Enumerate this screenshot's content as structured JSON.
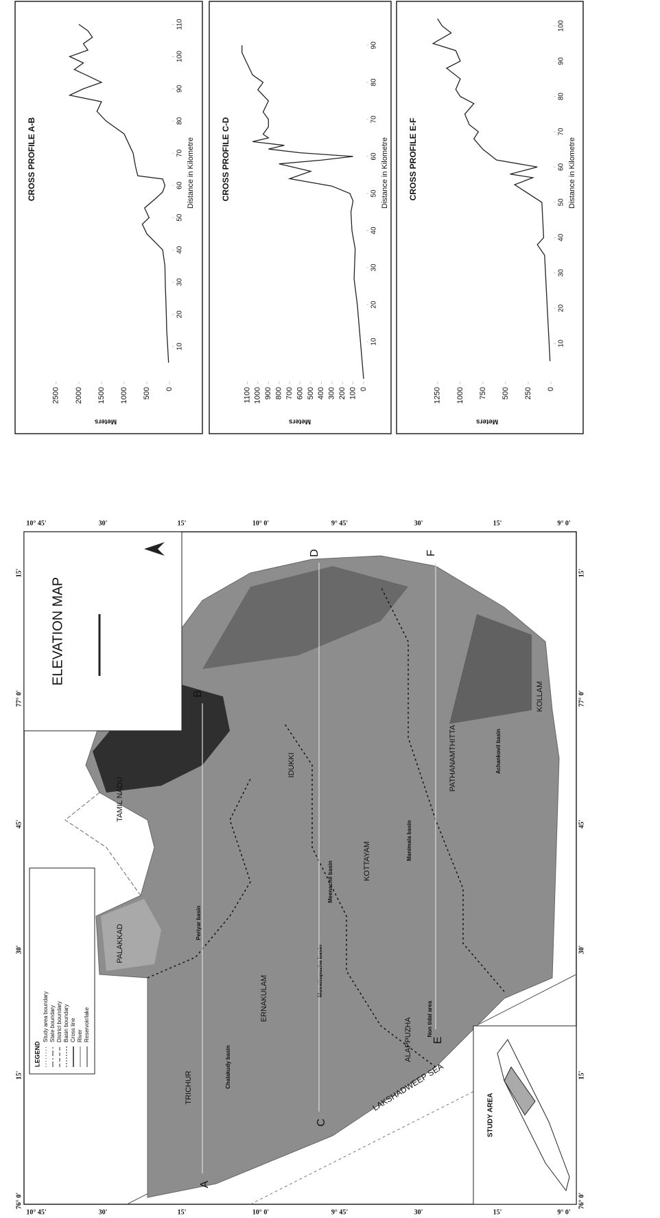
{
  "map": {
    "title": "ELEVATION MAP",
    "legend": {
      "title": "LEGEND",
      "items": [
        "Study area boundary",
        "State boundary",
        "District boundary",
        "Basin boundary",
        "Cross line",
        "River",
        "Reservoir/lake"
      ]
    },
    "inset_title": "STUDY AREA",
    "sea": "LAKSHADWEEP SEA",
    "regions": [
      "PALAKKAD",
      "TAMIL NADU",
      "IDUKKI",
      "TRICHUR",
      "ERNAKULAM",
      "KOTTAYAM",
      "ALAPPUZHA",
      "PATHANAMTHITTA",
      "KOLLAM"
    ],
    "basins": [
      "Chalakudy basin",
      "Periyar basin",
      "Muvattupuzha basin",
      "Meenachil basin",
      "Manimala basin",
      "Achankovil basin",
      "Non tidal area"
    ],
    "section_points": [
      "A",
      "B",
      "C",
      "D",
      "E",
      "F"
    ],
    "longitudes": [
      "76° 0'",
      "15'",
      "30'",
      "45'",
      "77° 0'",
      "15'"
    ],
    "latitudes": [
      "10° 45'",
      "30'",
      "15'",
      "10° 0'",
      "9° 45'",
      "30'",
      "15'",
      "9° 0'"
    ]
  },
  "chart_data": [
    {
      "type": "line",
      "title": "CROSS PROFILE A-B",
      "x_label": "Distance in Kilometre",
      "y_label": "Meters",
      "x": [
        5,
        10,
        15,
        20,
        25,
        28,
        35,
        40,
        45,
        48,
        50,
        53,
        56,
        58,
        60,
        62,
        63,
        66,
        70,
        73,
        76,
        80,
        83,
        86,
        88,
        90,
        92,
        94,
        96,
        98,
        100,
        102,
        104,
        106,
        108,
        110
      ],
      "series": [
        {
          "color": "#222222",
          "values": [
            20,
            40,
            60,
            70,
            80,
            90,
            100,
            150,
            500,
            600,
            450,
            550,
            300,
            150,
            100,
            150,
            700,
            750,
            800,
            900,
            1000,
            1400,
            1600,
            1500,
            2200,
            1900,
            1500,
            1800,
            2100,
            1900,
            2200,
            1800,
            1900,
            1700,
            1800,
            2000
          ]
        }
      ],
      "xlim": [
        0,
        115
      ],
      "ylim": [
        0,
        2800
      ],
      "xticks": [
        10,
        20,
        30,
        40,
        50,
        60,
        70,
        80,
        90,
        100,
        110
      ],
      "yticks": [
        0,
        500,
        1000,
        1500,
        2000,
        2500
      ]
    },
    {
      "type": "line",
      "title": "CROSS PROFILE C-D",
      "x_label": "Distance in Kilometre",
      "y_label": "Meters",
      "x": [
        0,
        10,
        20,
        27,
        35,
        40,
        45,
        48,
        50,
        52,
        54,
        56,
        58,
        59,
        60,
        61,
        62,
        63,
        64,
        65,
        66,
        68,
        70,
        72,
        75,
        78,
        80,
        82,
        85,
        88,
        90
      ],
      "series": [
        {
          "color": "#222222",
          "values": [
            0,
            30,
            60,
            90,
            80,
            110,
            120,
            100,
            130,
            300,
            700,
            500,
            800,
            400,
            100,
            600,
            900,
            750,
            1050,
            900,
            950,
            900,
            900,
            950,
            900,
            1000,
            950,
            1050,
            1100,
            1150,
            1150
          ]
        }
      ],
      "xlim": [
        0,
        100
      ],
      "ylim": [
        0,
        1200
      ],
      "xticks": [
        10,
        20,
        30,
        40,
        50,
        60,
        70,
        80,
        90
      ],
      "yticks": [
        0,
        100,
        200,
        300,
        400,
        500,
        600,
        700,
        800,
        900,
        1000,
        1100
      ]
    },
    {
      "type": "line",
      "title": "CROSS PROFILE E-F",
      "x_label": "Distance in Kilometre",
      "y_label": "Meters",
      "x": [
        5,
        10,
        20,
        30,
        35,
        38,
        40,
        45,
        50,
        55,
        57,
        58,
        60,
        62,
        65,
        68,
        70,
        72,
        75,
        78,
        80,
        82,
        85,
        88,
        90,
        93,
        95,
        98,
        100,
        102
      ],
      "series": [
        {
          "color": "#222222",
          "values": [
            10,
            20,
            40,
            60,
            70,
            150,
            80,
            90,
            100,
            400,
            200,
            450,
            150,
            600,
            750,
            850,
            800,
            900,
            950,
            850,
            1000,
            1050,
            1000,
            1150,
            1000,
            1050,
            1300,
            1100,
            1200,
            1250
          ]
        }
      ],
      "xlim": [
        0,
        105
      ],
      "ylim": [
        0,
        1400
      ],
      "xticks": [
        10,
        20,
        30,
        40,
        50,
        60,
        70,
        80,
        90,
        100
      ],
      "yticks": [
        0,
        250,
        500,
        750,
        1000,
        1250
      ]
    }
  ]
}
